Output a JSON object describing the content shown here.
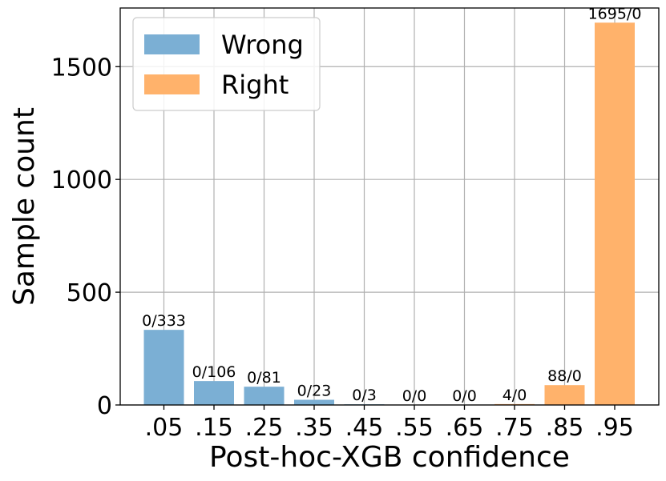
{
  "chart_data": {
    "type": "bar",
    "xlabel": "Post-hoc-XGB confidence",
    "ylabel": "Sample count",
    "ylim": [
      0,
      1760
    ],
    "yticks": [
      0,
      500,
      1000,
      1500
    ],
    "grid": true,
    "legend_position": "top-left",
    "categories": [
      ".05",
      ".15",
      ".25",
      ".35",
      ".45",
      ".55",
      ".65",
      ".75",
      ".85",
      ".95"
    ],
    "series": [
      {
        "name": "Wrong",
        "color": "#7bafd4",
        "values": [
          333,
          106,
          81,
          23,
          3,
          0,
          0,
          0,
          0,
          0
        ]
      },
      {
        "name": "Right",
        "color": "#ffb26b",
        "values": [
          0,
          0,
          0,
          0,
          0,
          0,
          0,
          4,
          88,
          1695
        ]
      }
    ],
    "bar_labels": [
      "0/333",
      "0/106",
      "0/81",
      "0/23",
      "0/3",
      "0/0",
      "0/0",
      "4/0",
      "88/0",
      "1695/0"
    ]
  }
}
